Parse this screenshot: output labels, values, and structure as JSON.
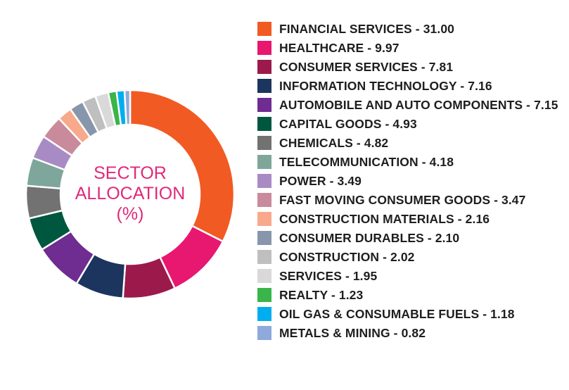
{
  "chart_data": {
    "type": "pie",
    "title_lines": [
      "SECTOR",
      "ALLOCATION",
      "(%)"
    ],
    "series": [
      {
        "name": "FINANCIAL SERVICES",
        "value": 31.0,
        "value_label": "31.00",
        "color": "#f15a22"
      },
      {
        "name": "HEALTHCARE",
        "value": 9.97,
        "value_label": "9.97",
        "color": "#e8176f"
      },
      {
        "name": "CONSUMER SERVICES",
        "value": 7.81,
        "value_label": "7.81",
        "color": "#9b1a4b"
      },
      {
        "name": "INFORMATION TECHNOLOGY",
        "value": 7.16,
        "value_label": "7.16",
        "color": "#1c355e"
      },
      {
        "name": "AUTOMOBILE AND AUTO COMPONENTS",
        "value": 7.15,
        "value_label": "7.15",
        "color": "#6f2c91"
      },
      {
        "name": "CAPITAL GOODS",
        "value": 4.93,
        "value_label": "4.93",
        "color": "#00573f"
      },
      {
        "name": "CHEMICALS",
        "value": 4.82,
        "value_label": "4.82",
        "color": "#727272"
      },
      {
        "name": "TELECOMMUNICATION",
        "value": 4.18,
        "value_label": "4.18",
        "color": "#7ea69a"
      },
      {
        "name": "POWER",
        "value": 3.49,
        "value_label": "3.49",
        "color": "#a88bc4"
      },
      {
        "name": "FAST MOVING CONSUMER GOODS",
        "value": 3.47,
        "value_label": "3.47",
        "color": "#c98a9b"
      },
      {
        "name": "CONSTRUCTION MATERIALS",
        "value": 2.16,
        "value_label": "2.16",
        "color": "#f8a98b"
      },
      {
        "name": "CONSUMER DURABLES",
        "value": 2.1,
        "value_label": "2.10",
        "color": "#8796aa"
      },
      {
        "name": "CONSTRUCTION",
        "value": 2.02,
        "value_label": "2.02",
        "color": "#bfbfbf"
      },
      {
        "name": "SERVICES",
        "value": 1.95,
        "value_label": "1.95",
        "color": "#d9d9d9"
      },
      {
        "name": "REALTY",
        "value": 1.23,
        "value_label": "1.23",
        "color": "#39b54a"
      },
      {
        "name": "OIL GAS & CONSUMABLE FUELS",
        "value": 1.18,
        "value_label": "1.18",
        "color": "#00aeef"
      },
      {
        "name": "METALS & MINING",
        "value": 0.82,
        "value_label": "0.82",
        "color": "#8ea9db"
      }
    ]
  }
}
